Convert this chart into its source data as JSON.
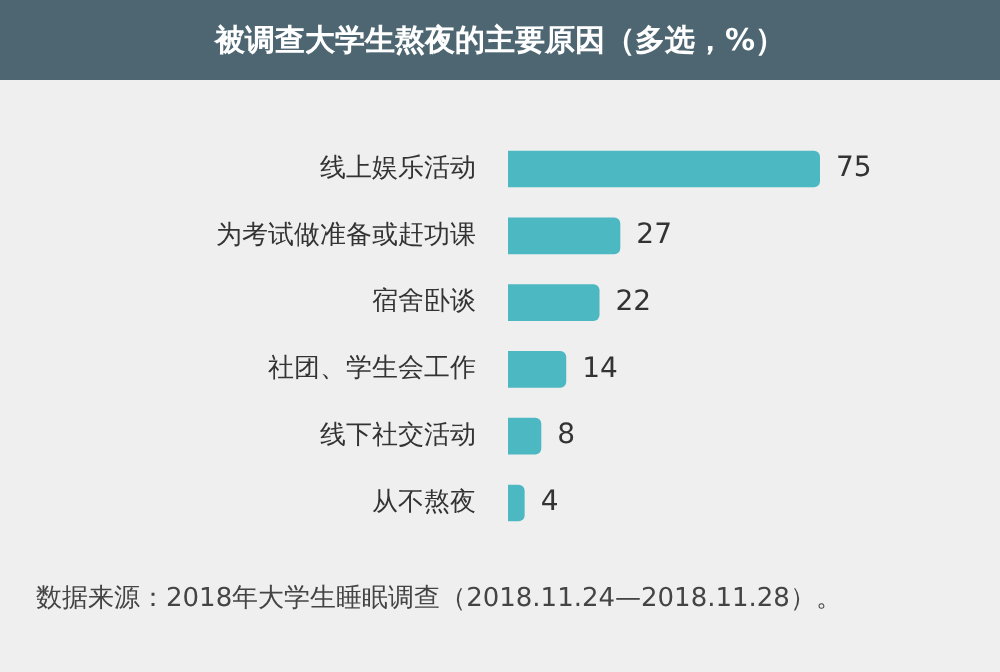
{
  "chart_data": {
    "type": "bar",
    "orientation": "horizontal",
    "title": "被调查大学生熬夜的主要原因（多选，%）",
    "categories": [
      "线上娱乐活动",
      "为考试做准备或赶功课",
      "宿舍卧谈",
      "社团、学生会工作",
      "线下社交活动",
      "从不熬夜"
    ],
    "values": [
      75,
      27,
      22,
      14,
      8,
      4
    ],
    "color": "#4cb8c2",
    "data_labels": true,
    "legend": false,
    "annotations": [
      "数据来源：2018年大学生睡眠调查（2018.11.24—2018.11.28）。"
    ]
  }
}
